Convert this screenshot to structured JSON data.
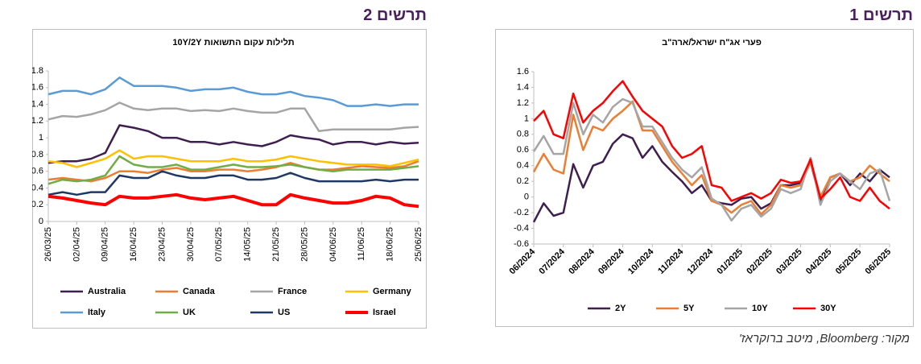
{
  "chart_data": [
    {
      "type": "line",
      "figure_label": "תרשים 1",
      "title": "פערי אג\"ח ישראל/ארה\"ב",
      "categories": [
        "06/2024",
        null,
        null,
        "07/2024",
        null,
        null,
        "08/2024",
        null,
        null,
        "09/2024",
        null,
        null,
        "10/2024",
        null,
        null,
        "11/2024",
        null,
        null,
        "12/2024",
        null,
        null,
        "01/2025",
        null,
        null,
        "02/2025",
        null,
        null,
        "03/2025",
        null,
        null,
        "04/2025",
        null,
        null,
        "05/2025",
        null,
        null,
        "06/2025"
      ],
      "ylim": [
        -0.6,
        1.6
      ],
      "yticks": [
        -0.6,
        -0.4,
        -0.2,
        0,
        0.2,
        0.4,
        0.6,
        0.8,
        1,
        1.2,
        1.4,
        1.6
      ],
      "grid": false,
      "series": [
        {
          "name": "2Y",
          "color": "#3f1f4f",
          "values": [
            -0.32,
            -0.08,
            -0.24,
            -0.2,
            0.42,
            0.12,
            0.4,
            0.45,
            0.68,
            0.8,
            0.75,
            0.5,
            0.65,
            0.45,
            0.32,
            0.2,
            0.05,
            0.15,
            -0.05,
            -0.08,
            -0.1,
            -0.02,
            0.0,
            -0.15,
            -0.08,
            0.15,
            0.15,
            0.18,
            0.45,
            -0.05,
            0.25,
            0.3,
            0.15,
            0.3,
            0.2,
            0.35,
            0.25
          ]
        },
        {
          "name": "5Y",
          "color": "#ed7d31",
          "values": [
            0.32,
            0.55,
            0.35,
            0.3,
            1.05,
            0.6,
            0.9,
            0.85,
            1.0,
            1.1,
            1.22,
            0.85,
            0.85,
            0.65,
            0.45,
            0.3,
            0.15,
            0.28,
            -0.05,
            -0.1,
            -0.2,
            -0.1,
            -0.05,
            -0.22,
            -0.1,
            0.15,
            0.12,
            0.15,
            0.45,
            0.0,
            0.25,
            0.3,
            0.2,
            0.25,
            0.4,
            0.3,
            0.2
          ]
        },
        {
          "name": "10Y",
          "color": "#a5a5a5",
          "values": [
            0.58,
            0.78,
            0.55,
            0.55,
            1.2,
            0.8,
            1.05,
            0.95,
            1.15,
            1.25,
            1.2,
            0.9,
            0.9,
            0.7,
            0.5,
            0.35,
            0.25,
            0.38,
            -0.02,
            -0.1,
            -0.3,
            -0.15,
            -0.1,
            -0.25,
            -0.15,
            0.1,
            0.05,
            0.1,
            0.5,
            -0.1,
            0.2,
            0.3,
            0.2,
            0.1,
            0.3,
            0.35,
            -0.05
          ]
        },
        {
          "name": "30Y",
          "color": "#ff0000",
          "values": [
            0.97,
            1.1,
            0.8,
            0.75,
            1.32,
            0.95,
            1.1,
            1.2,
            1.35,
            1.48,
            1.28,
            1.1,
            1.0,
            0.9,
            0.65,
            0.5,
            0.55,
            0.65,
            0.15,
            0.12,
            -0.05,
            0.0,
            0.05,
            -0.02,
            0.05,
            0.22,
            0.18,
            0.2,
            0.48,
            -0.02,
            0.1,
            0.25,
            0.0,
            -0.05,
            0.12,
            -0.05,
            -0.15
          ]
        }
      ]
    },
    {
      "type": "line",
      "figure_label": "תרשים 2",
      "title": "תלילות עקום התשואות 10Y/2Y",
      "categories": [
        "26/03/25",
        null,
        "02/04/25",
        null,
        "09/04/25",
        null,
        "16/04/25",
        null,
        "23/04/25",
        null,
        "30/04/25",
        null,
        "07/05/25",
        null,
        "14/05/25",
        null,
        "21/05/25",
        null,
        "28/05/25",
        null,
        "04/06/25",
        null,
        "11/06/25",
        null,
        "18/06/25",
        null,
        "25/06/25"
      ],
      "ylim": [
        0,
        1.8
      ],
      "yticks": [
        0,
        0.2,
        0.4,
        0.6,
        0.8,
        1,
        1.2,
        1.4,
        1.6,
        1.8
      ],
      "grid": false,
      "series": [
        {
          "name": "Australia",
          "color": "#3f1f4f",
          "values": [
            0.7,
            0.72,
            0.72,
            0.75,
            0.82,
            1.15,
            1.12,
            1.08,
            1.0,
            1.0,
            0.95,
            0.95,
            0.92,
            0.95,
            0.92,
            0.9,
            0.95,
            1.03,
            1.0,
            0.98,
            0.92,
            0.95,
            0.95,
            0.92,
            0.95,
            0.93,
            0.94
          ]
        },
        {
          "name": "Canada",
          "color": "#ed7d31",
          "values": [
            0.5,
            0.52,
            0.5,
            0.48,
            0.52,
            0.6,
            0.6,
            0.58,
            0.62,
            0.64,
            0.6,
            0.6,
            0.62,
            0.62,
            0.6,
            0.62,
            0.65,
            0.7,
            0.65,
            0.62,
            0.62,
            0.64,
            0.66,
            0.65,
            0.64,
            0.66,
            0.72
          ]
        },
        {
          "name": "France",
          "color": "#a5a5a5",
          "values": [
            1.22,
            1.26,
            1.25,
            1.28,
            1.33,
            1.42,
            1.35,
            1.33,
            1.35,
            1.35,
            1.32,
            1.33,
            1.32,
            1.35,
            1.32,
            1.3,
            1.3,
            1.35,
            1.35,
            1.08,
            1.1,
            1.1,
            1.1,
            1.1,
            1.1,
            1.12,
            1.13
          ]
        },
        {
          "name": "Germany",
          "color": "#ffc000",
          "values": [
            0.72,
            0.7,
            0.65,
            0.7,
            0.75,
            0.85,
            0.75,
            0.78,
            0.78,
            0.75,
            0.72,
            0.72,
            0.72,
            0.75,
            0.72,
            0.72,
            0.74,
            0.78,
            0.75,
            0.72,
            0.7,
            0.68,
            0.68,
            0.68,
            0.66,
            0.7,
            0.74
          ]
        },
        {
          "name": "Italy",
          "color": "#5b9bd5",
          "values": [
            1.52,
            1.56,
            1.56,
            1.52,
            1.58,
            1.72,
            1.62,
            1.62,
            1.62,
            1.6,
            1.56,
            1.58,
            1.58,
            1.6,
            1.55,
            1.52,
            1.52,
            1.55,
            1.5,
            1.48,
            1.45,
            1.38,
            1.38,
            1.4,
            1.38,
            1.4,
            1.4
          ]
        },
        {
          "name": "UK",
          "color": "#70ad47",
          "values": [
            0.45,
            0.5,
            0.48,
            0.5,
            0.55,
            0.78,
            0.68,
            0.65,
            0.65,
            0.68,
            0.62,
            0.62,
            0.65,
            0.68,
            0.65,
            0.65,
            0.66,
            0.68,
            0.65,
            0.62,
            0.6,
            0.62,
            0.62,
            0.62,
            0.62,
            0.64,
            0.66
          ]
        },
        {
          "name": "US",
          "color": "#1f3864",
          "values": [
            0.32,
            0.35,
            0.32,
            0.35,
            0.35,
            0.55,
            0.52,
            0.52,
            0.6,
            0.55,
            0.52,
            0.52,
            0.55,
            0.55,
            0.5,
            0.5,
            0.52,
            0.58,
            0.52,
            0.48,
            0.48,
            0.48,
            0.48,
            0.5,
            0.48,
            0.5,
            0.5
          ]
        },
        {
          "name": "Israel",
          "color": "#ff0000",
          "values": [
            0.3,
            0.28,
            0.25,
            0.22,
            0.2,
            0.3,
            0.28,
            0.28,
            0.3,
            0.32,
            0.28,
            0.26,
            0.28,
            0.3,
            0.25,
            0.2,
            0.2,
            0.32,
            0.28,
            0.25,
            0.22,
            0.22,
            0.25,
            0.3,
            0.28,
            0.2,
            0.18
          ]
        }
      ]
    }
  ],
  "source": "מקור: Bloomberg, מיטב ברוקראז'"
}
